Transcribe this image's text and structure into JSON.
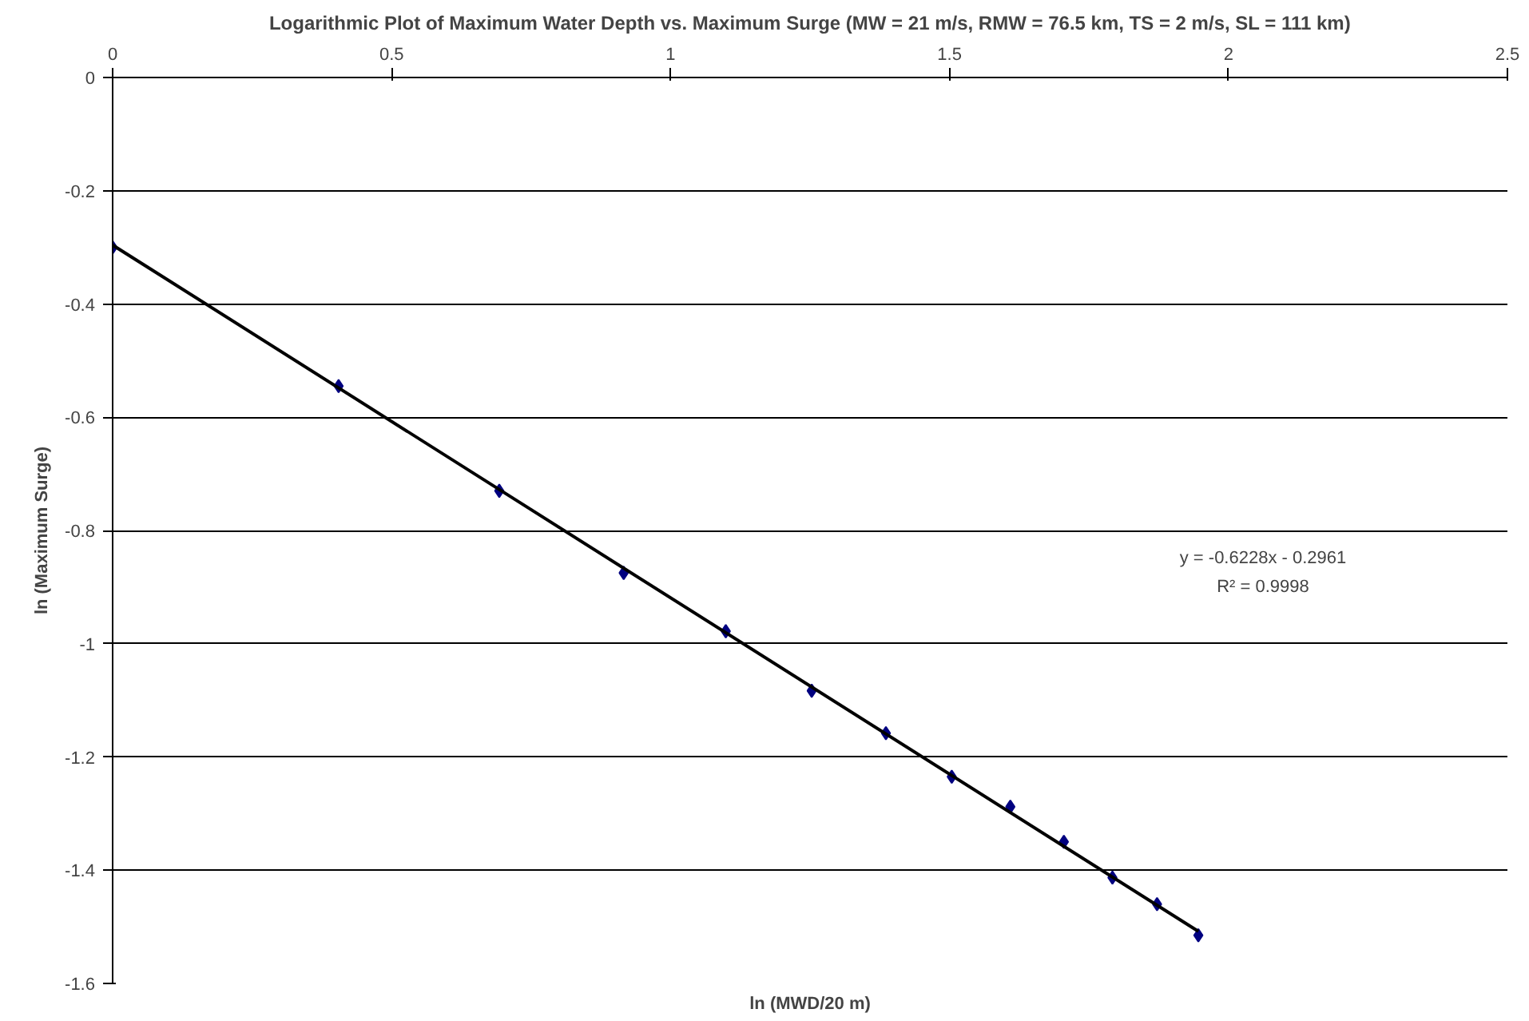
{
  "chart_data": {
    "type": "scatter",
    "title": "Logarithmic Plot of Maximum Water Depth vs. Maximum Surge (MW = 21 m/s, RMW = 76.5 km, TS = 2 m/s, SL = 111 km)",
    "xlabel": "ln (MWD/20 m)",
    "ylabel": "ln (Maximum Surge)",
    "x": [
      0,
      0.405,
      0.693,
      0.916,
      1.099,
      1.253,
      1.386,
      1.504,
      1.609,
      1.705,
      1.792,
      1.872,
      1.946
    ],
    "series": [
      {
        "color": "#000080",
        "marker": "diamond",
        "values": [
          -0.3,
          -0.545,
          -0.73,
          -0.875,
          -0.978,
          -1.083,
          -1.158,
          -1.235,
          -1.288,
          -1.35,
          -1.413,
          -1.46,
          -1.515
        ]
      },
      {
        "type": "line",
        "color": "#000000",
        "x": [
          0,
          1.946
        ],
        "values": [
          -0.296,
          -1.508
        ]
      }
    ],
    "annotations": [
      "y = -0.6228x - 0.2961",
      "R² = 0.9998"
    ],
    "xlim": [
      0,
      2.5
    ],
    "xticks": [
      0,
      0.5,
      1,
      1.5,
      2,
      2.5
    ],
    "ylim": [
      -1.6,
      0
    ],
    "yticks": [
      0,
      -0.2,
      -0.4,
      -0.6,
      -0.8,
      -1,
      -1.2,
      -1.4,
      -1.6
    ],
    "grid": "y"
  }
}
